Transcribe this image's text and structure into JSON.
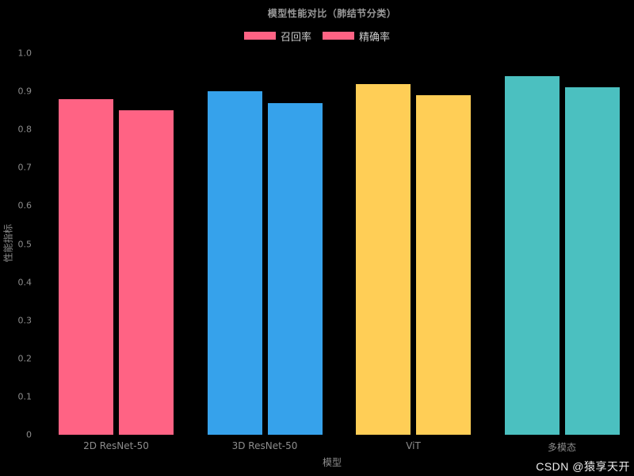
{
  "chart_data": {
    "type": "bar",
    "title": "模型性能对比（肺结节分类）",
    "xlabel": "模型",
    "ylabel": "性能指标",
    "categories": [
      "2D ResNet-50",
      "3D ResNet-50",
      "ViT",
      "多模态"
    ],
    "series": [
      {
        "name": "召回率",
        "values": [
          0.88,
          0.9,
          0.92,
          0.94
        ]
      },
      {
        "name": "精确率",
        "values": [
          0.85,
          0.87,
          0.89,
          0.91
        ]
      }
    ],
    "category_colors": [
      "#FF6384",
      "#36A2EB",
      "#FFCE56",
      "#4BC0C0"
    ],
    "legend_swatch_color": "#FF6384",
    "ylim": [
      0,
      1.0
    ],
    "yticks": [
      "0",
      "0.1",
      "0.2",
      "0.3",
      "0.4",
      "0.5",
      "0.6",
      "0.7",
      "0.8",
      "0.9",
      "1.0"
    ],
    "grid": false,
    "legend_position": "top-center",
    "background_color": "#000000"
  },
  "colors": {
    "title_text": "#999999",
    "tick_text": "#8c8c8c",
    "legend_text": "#cccccc",
    "watermark_text": "#ededed"
  },
  "watermark": {
    "text": "CSDN @猿享天开"
  }
}
